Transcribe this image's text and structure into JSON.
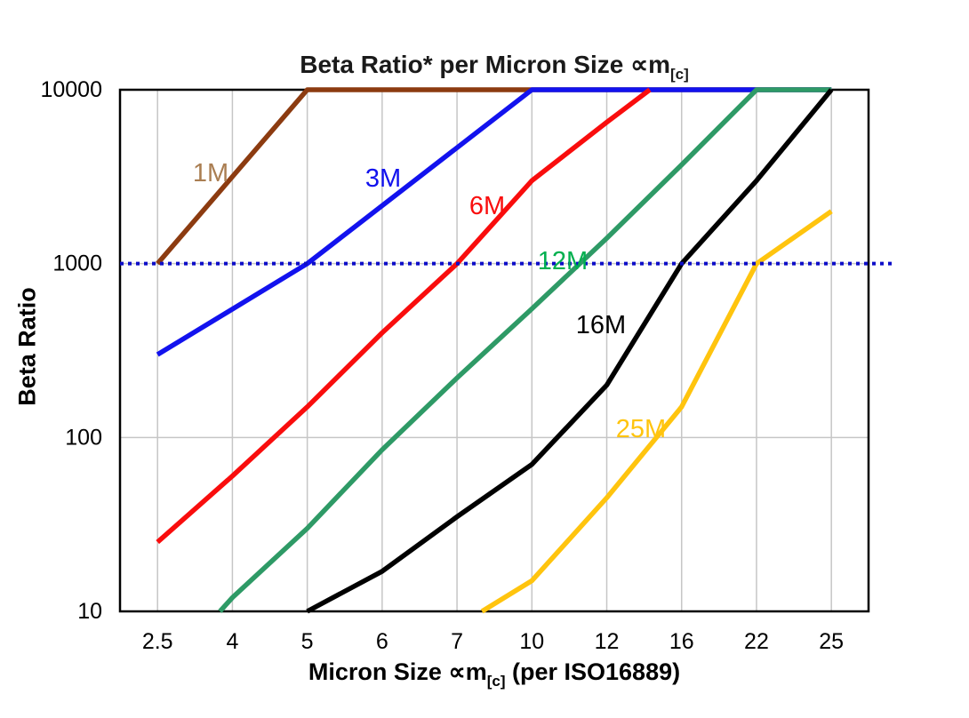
{
  "title": {
    "text": "Beta Ratio* per Micron Size ∝m",
    "subscript": "[c]"
  },
  "y_axis": {
    "label": "Beta Ratio",
    "scale": "log",
    "tick_labels": [
      "10000",
      "1000",
      "100",
      "10"
    ],
    "tick_values": [
      10000,
      1000,
      100,
      10
    ]
  },
  "x_axis": {
    "label_text": "Micron Size ∝m",
    "label_subscript": "[c]",
    "label_suffix": " (per ISO16889)",
    "tick_labels": [
      "2.5",
      "4",
      "5",
      "6",
      "7",
      "10",
      "12",
      "16",
      "22",
      "25"
    ]
  },
  "reference_line": {
    "beta": 1000,
    "style": "dotted",
    "color": "#0D0DC8"
  },
  "colors": {
    "background": "#FFFFFF",
    "grid": "#C6C6C6",
    "frame": "#000000",
    "text": "#000000"
  },
  "chart_data": {
    "type": "line",
    "title": "Beta Ratio* per Micron Size ∝m[c]",
    "xlabel": "Micron Size ∝m[c] (per ISO16889)",
    "ylabel": "Beta Ratio",
    "x_scale": "categorical",
    "y_scale": "log",
    "grid": "on",
    "legend_position": "inline-labels",
    "categories": [
      2.5,
      4,
      5,
      6,
      7,
      10,
      12,
      16,
      22,
      25
    ],
    "ylim": [
      10,
      10000
    ],
    "reference_value": 1000,
    "series": [
      {
        "name": "1M",
        "color": "#8C3B10",
        "label_color": "#AA7E52",
        "points": [
          [
            2.5,
            1000
          ],
          [
            5,
            10000
          ],
          [
            25,
            10000
          ]
        ]
      },
      {
        "name": "3M",
        "color": "#1212EE",
        "label_color": "#1212EE",
        "points": [
          [
            2.5,
            300
          ],
          [
            5,
            1000
          ],
          [
            10,
            10000
          ],
          [
            25,
            10000
          ]
        ]
      },
      {
        "name": "6M",
        "color": "#F90D0D",
        "label_color": "#F90D0D",
        "points": [
          [
            2.5,
            25
          ],
          [
            4,
            60
          ],
          [
            5,
            150
          ],
          [
            6,
            400
          ],
          [
            7,
            1000
          ],
          [
            10,
            3000
          ],
          [
            12,
            6500
          ],
          [
            14.3,
            10000
          ]
        ]
      },
      {
        "name": "12M",
        "color": "#2E9A66",
        "label_color": "#00B04F",
        "points": [
          [
            3.75,
            10
          ],
          [
            4,
            12
          ],
          [
            5,
            30
          ],
          [
            6,
            85
          ],
          [
            7,
            220
          ],
          [
            10,
            550
          ],
          [
            12,
            1400
          ],
          [
            16,
            3700
          ],
          [
            22,
            10000
          ],
          [
            25,
            10000
          ]
        ]
      },
      {
        "name": "16M",
        "color": "#000000",
        "label_color": "#000000",
        "points": [
          [
            5,
            10
          ],
          [
            6,
            17
          ],
          [
            7,
            35
          ],
          [
            10,
            70
          ],
          [
            12,
            200
          ],
          [
            16,
            1000
          ],
          [
            22,
            3000
          ],
          [
            25,
            10000
          ]
        ]
      },
      {
        "name": "25M",
        "color": "#FFC40E",
        "label_color": "#FFC40E",
        "points": [
          [
            8,
            10
          ],
          [
            10,
            15
          ],
          [
            12,
            45
          ],
          [
            16,
            150
          ],
          [
            22,
            1000
          ],
          [
            25,
            2000
          ]
        ]
      }
    ]
  }
}
